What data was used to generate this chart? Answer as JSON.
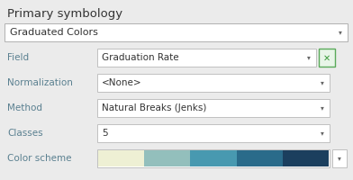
{
  "title": "Primary symbology",
  "bg_color": "#ebebeb",
  "dropdown_bg": "#ffffff",
  "dropdown_border": "#c0c0c0",
  "text_color": "#333333",
  "label_color": "#5a8090",
  "title_color": "#333333",
  "main_dropdown": "Graduated Colors",
  "rows": [
    {
      "label": "Field",
      "value": "Graduation Rate",
      "has_x": true
    },
    {
      "label": "Normalization",
      "value": "<None>",
      "has_x": false
    },
    {
      "label": "Method",
      "value": "Natural Breaks (Jenks)",
      "has_x": false
    },
    {
      "label": "Classes",
      "value": "5",
      "has_x": false
    },
    {
      "label": "Color scheme",
      "value": "",
      "has_x": false
    }
  ],
  "color_scheme": [
    "#eef0d4",
    "#93bfbc",
    "#4899b0",
    "#2a6b8a",
    "#1b3f5e"
  ],
  "x_btn_face": "#e8f5e8",
  "x_btn_border": "#5aaa5a",
  "x_btn_text": "#3a9a3a",
  "arrow_color": "#666666",
  "figw": 3.92,
  "figh": 2.0,
  "dpi": 100
}
